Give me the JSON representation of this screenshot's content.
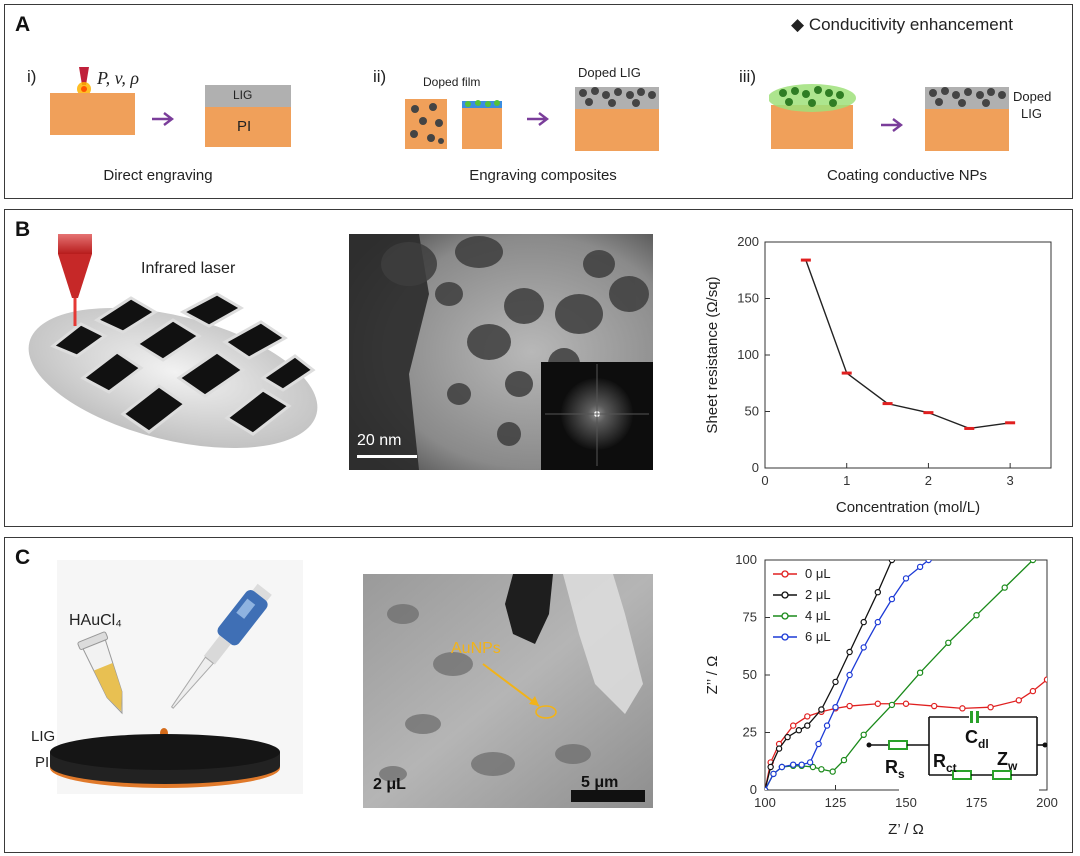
{
  "panel_a": {
    "label": "A",
    "legend": "Conducitivity enhancement",
    "steps": [
      {
        "roman": "i)",
        "caption": "Direct engraving",
        "params": "P, v, ρ",
        "layer_top": "LIG",
        "layer_bottom": "PI"
      },
      {
        "roman": "ii)",
        "caption": "Engraving composites",
        "film_label": "Doped film",
        "product_label": "Doped  LIG"
      },
      {
        "roman": "iii)",
        "caption": "Coating conductive NPs",
        "product_label_line1": "Doped",
        "product_label_line2": "LIG"
      }
    ]
  },
  "panel_b": {
    "label": "B",
    "laser_label": "Infrared laser",
    "scale_bar": "20 nm"
  },
  "panel_c": {
    "label": "C",
    "reagent": "HAuCl₄",
    "layer_top": "LIG",
    "layer_bottom": "PI",
    "sem_annotation": "AuNPs",
    "sem_volume": "2 μL",
    "sem_scale_bar": "5 μm",
    "circuit": {
      "rs": "R",
      "rs_sub": "s",
      "rct": "R",
      "rct_sub": "ct",
      "cdl": "C",
      "cdl_sub": "dl",
      "zw": "Z",
      "zw_sub": "w"
    }
  },
  "chart_data": [
    {
      "type": "line",
      "xlabel": "Concentration (mol/L)",
      "ylabel": "Sheet resistance (Ω/sq)",
      "xlim": [
        0,
        3.5
      ],
      "ylim": [
        0,
        200
      ],
      "xticks": [
        "0",
        "1",
        "2",
        "3"
      ],
      "yticks": [
        "0",
        "50",
        "100",
        "150",
        "200"
      ],
      "x": [
        0.5,
        1.0,
        1.5,
        2.0,
        2.5,
        3.0
      ],
      "values": [
        184,
        84,
        57,
        49,
        35,
        40
      ],
      "colors": {
        "line": "#222222",
        "marker": "#e02020"
      }
    },
    {
      "type": "line",
      "xlabel": "Z’ / Ω",
      "ylabel": "Z’’ / Ω",
      "xlim": [
        100,
        200
      ],
      "ylim": [
        0,
        100
      ],
      "xticks": [
        "100",
        "125",
        "150",
        "175",
        "200"
      ],
      "yticks": [
        "0",
        "25",
        "50",
        "75",
        "100"
      ],
      "legend": [
        "0 μL",
        "2 μL",
        "4 μL",
        "6 μL"
      ],
      "series": [
        {
          "name": "0 μL",
          "color": "#e02020",
          "x": [
            100,
            102,
            105,
            110,
            115,
            120,
            125,
            130,
            140,
            150,
            160,
            170,
            180,
            190,
            195,
            200
          ],
          "y": [
            0,
            12,
            20,
            28,
            32,
            34,
            35.5,
            36.5,
            37.5,
            37.5,
            36.5,
            35.5,
            36,
            39,
            43,
            48
          ]
        },
        {
          "name": "2 μL",
          "color": "#111111",
          "x": [
            100,
            102,
            105,
            108,
            112,
            115,
            120,
            125,
            130,
            135,
            140,
            145
          ],
          "y": [
            0,
            10,
            18,
            23,
            26,
            28,
            35,
            47,
            60,
            73,
            86,
            100
          ]
        },
        {
          "name": "4 μL",
          "color": "#1a8a1a",
          "x": [
            100,
            103,
            106,
            110,
            113,
            117,
            120,
            124,
            128,
            135,
            145,
            155,
            165,
            175,
            185,
            195
          ],
          "y": [
            0,
            7,
            10,
            10.5,
            10.5,
            10,
            9,
            8,
            13,
            24,
            37,
            51,
            64,
            76,
            88,
            100
          ]
        },
        {
          "name": "6 μL",
          "color": "#1c3ad6",
          "x": [
            100,
            103,
            106,
            110,
            113,
            116,
            119,
            122,
            125,
            130,
            135,
            140,
            145,
            150,
            155,
            158
          ],
          "y": [
            0,
            7,
            10,
            11,
            11,
            12,
            20,
            28,
            36,
            50,
            62,
            73,
            83,
            92,
            97,
            100
          ]
        }
      ]
    }
  ]
}
